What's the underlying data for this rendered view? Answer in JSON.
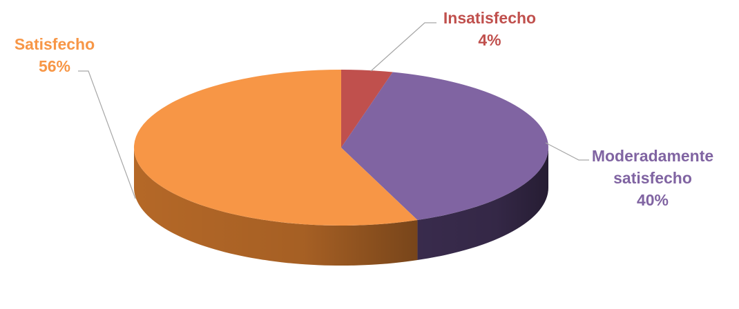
{
  "chart_data": {
    "type": "pie",
    "style": "3d",
    "title": "",
    "legend": "none",
    "slices": [
      {
        "key": "insatisfecho",
        "label": "Insatisfecho",
        "value": 4,
        "value_label": "4%",
        "color": "#c0504d",
        "side_color": "#7a2e2c"
      },
      {
        "key": "moderadamente",
        "label_lines": [
          "Moderadamente",
          "satisfecho"
        ],
        "value": 40,
        "value_label": "40%",
        "color": "#8064a2",
        "side_color": "#3a2c4e"
      },
      {
        "key": "satisfecho",
        "label": "Satisfecho",
        "value": 56,
        "value_label": "56%",
        "color": "#f79646",
        "side_color": "#b86a28"
      }
    ]
  }
}
